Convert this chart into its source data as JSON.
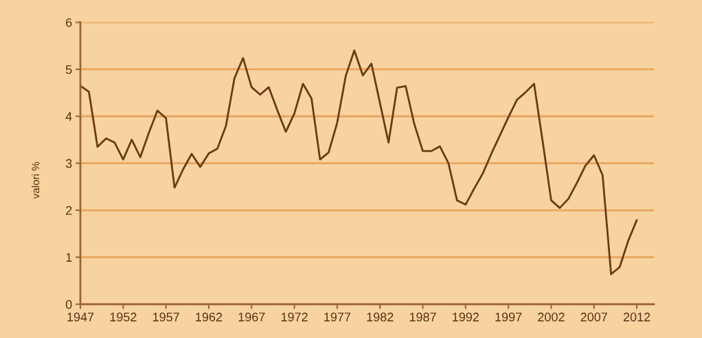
{
  "chart_data": {
    "type": "line",
    "ylabel": "valori %",
    "x": [
      1947,
      1948,
      1949,
      1950,
      1951,
      1952,
      1953,
      1954,
      1955,
      1956,
      1957,
      1958,
      1959,
      1960,
      1961,
      1962,
      1963,
      1964,
      1965,
      1966,
      1967,
      1968,
      1969,
      1970,
      1971,
      1972,
      1973,
      1974,
      1975,
      1976,
      1977,
      1978,
      1979,
      1980,
      1981,
      1982,
      1983,
      1984,
      1985,
      1986,
      1987,
      1988,
      1989,
      1990,
      1991,
      1992,
      1993,
      1994,
      1995,
      1996,
      1997,
      1998,
      1999,
      2000,
      2001,
      2002,
      2003,
      2004,
      2005,
      2006,
      2007,
      2008,
      2009,
      2010,
      2011,
      2012
    ],
    "series": [
      {
        "color": "#6b3a14",
        "values": [
          4.65,
          4.52,
          3.35,
          3.53,
          3.44,
          3.08,
          3.5,
          3.13,
          3.65,
          4.12,
          3.96,
          2.48,
          2.87,
          3.2,
          2.92,
          3.21,
          3.31,
          3.79,
          4.81,
          5.24,
          4.62,
          4.46,
          4.62,
          4.13,
          3.67,
          4.06,
          4.69,
          4.38,
          3.08,
          3.23,
          3.86,
          4.86,
          5.4,
          4.87,
          5.12,
          4.28,
          3.44,
          4.61,
          4.64,
          3.84,
          3.26,
          3.26,
          3.36,
          3.0,
          2.21,
          2.12,
          2.46,
          2.78,
          3.2,
          3.59,
          3.98,
          4.35,
          4.51,
          4.69,
          3.47,
          2.21,
          2.05,
          2.24,
          2.58,
          2.95,
          3.17,
          2.75,
          0.64,
          0.79,
          1.35,
          1.79
        ]
      }
    ],
    "xlim": [
      1947,
      2014
    ],
    "xticks": [
      1947,
      1952,
      1957,
      1962,
      1967,
      1972,
      1977,
      1982,
      1987,
      1992,
      1997,
      2002,
      2007,
      2012
    ],
    "ylim": [
      0,
      6
    ],
    "yticks": [
      0,
      1,
      2,
      3,
      4,
      5,
      6
    ],
    "grid": "y",
    "line_style": "solid"
  }
}
